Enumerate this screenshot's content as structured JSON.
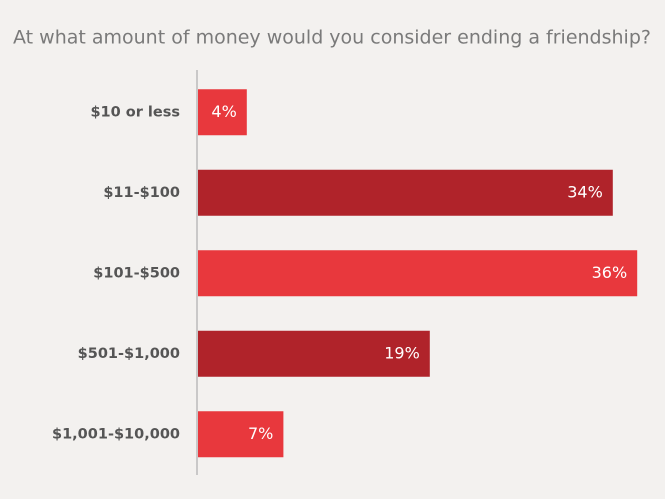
{
  "chart_data": {
    "type": "bar",
    "orientation": "horizontal",
    "title": "At what amount of money would you consider ending a friendship?",
    "categories": [
      "$10 or less",
      "$11-$100",
      "$101-$500",
      "$501-$1,000",
      "$1,001-$10,000"
    ],
    "values": [
      4,
      34,
      36,
      19,
      7
    ],
    "value_labels": [
      "4%",
      "34%",
      "36%",
      "19%",
      "7%"
    ],
    "colors": [
      "#e8383d",
      "#b0232a",
      "#e8383d",
      "#b0232a",
      "#e8383d"
    ]
  }
}
